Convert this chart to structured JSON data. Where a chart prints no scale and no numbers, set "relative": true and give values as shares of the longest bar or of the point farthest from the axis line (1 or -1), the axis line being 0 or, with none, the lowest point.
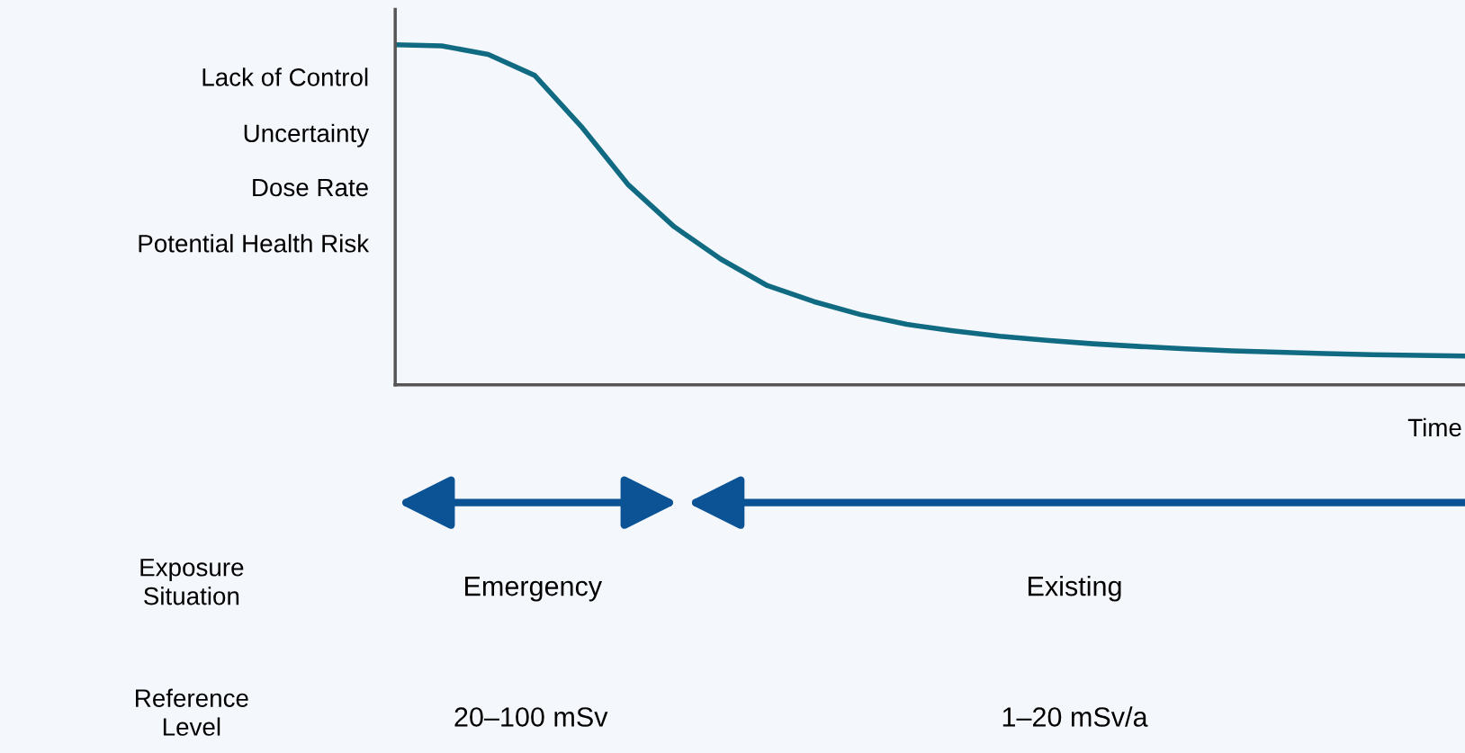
{
  "chart_data": {
    "type": "line",
    "relative": true,
    "xlabel": "Time",
    "color": "#0f6a82",
    "categories": [
      null,
      null,
      null,
      null,
      null,
      null,
      null,
      null,
      null,
      null,
      null,
      null,
      null,
      null,
      null,
      null,
      null,
      null,
      null,
      null,
      null,
      null,
      null,
      null
    ],
    "values": [
      1.0,
      0.997,
      0.972,
      0.91,
      0.76,
      0.59,
      0.465,
      0.37,
      0.292,
      0.245,
      0.207,
      0.178,
      0.159,
      0.143,
      0.131,
      0.121,
      0.113,
      0.106,
      0.1,
      0.096,
      0.092,
      0.089,
      0.087,
      0.085
    ],
    "annotations": [
      "Lack of Control",
      "Uncertainty",
      "Dose Rate",
      "Potential Health Risk",
      "Exposure\nSituation",
      "Emergency",
      "Existing",
      "Reference\nLevel",
      "20–100 mSv",
      "1–20 mSv/a"
    ],
    "marker": "none",
    "line_style": "solid"
  }
}
